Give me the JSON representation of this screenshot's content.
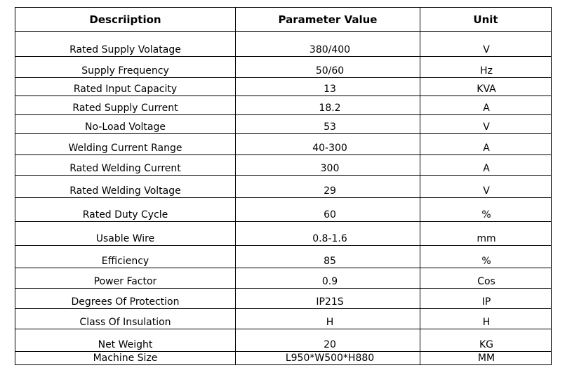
{
  "table": {
    "headers": [
      "Descriiption",
      "Parameter Value",
      "Unit"
    ],
    "rows": [
      {
        "description": "Rated Supply Volatage",
        "value": "380/400",
        "unit": "V"
      },
      {
        "description": "Supply Frequency",
        "value": "50/60",
        "unit": "Hz"
      },
      {
        "description": "Rated Input Capacity",
        "value": "13",
        "unit": "KVA"
      },
      {
        "description": "Rated Supply Current",
        "value": "18.2",
        "unit": "A"
      },
      {
        "description": "No-Load Voltage",
        "value": "53",
        "unit": "V"
      },
      {
        "description": "Welding Current Range",
        "value": "40-300",
        "unit": "A"
      },
      {
        "description": "Rated Welding Current",
        "value": "300",
        "unit": "A"
      },
      {
        "description": "Rated Welding Voltage",
        "value": "29",
        "unit": "V"
      },
      {
        "description": "Rated Duty Cycle",
        "value": "60",
        "unit": "%"
      },
      {
        "description": "Usable Wire",
        "value": "0.8-1.6",
        "unit": "mm"
      },
      {
        "description": "Efficiency",
        "value": "85",
        "unit": "%"
      },
      {
        "description": "Power Factor",
        "value": "0.9",
        "unit": "Cos"
      },
      {
        "description": "Degrees Of Protection",
        "value": "IP21S",
        "unit": "IP"
      },
      {
        "description": "Class Of Insulation",
        "value": "H",
        "unit": "H"
      },
      {
        "description": "Net Weight",
        "value": "20",
        "unit": "KG"
      },
      {
        "description": "Machine Size",
        "value": "L950*W500*H880",
        "unit": "MM"
      }
    ]
  }
}
